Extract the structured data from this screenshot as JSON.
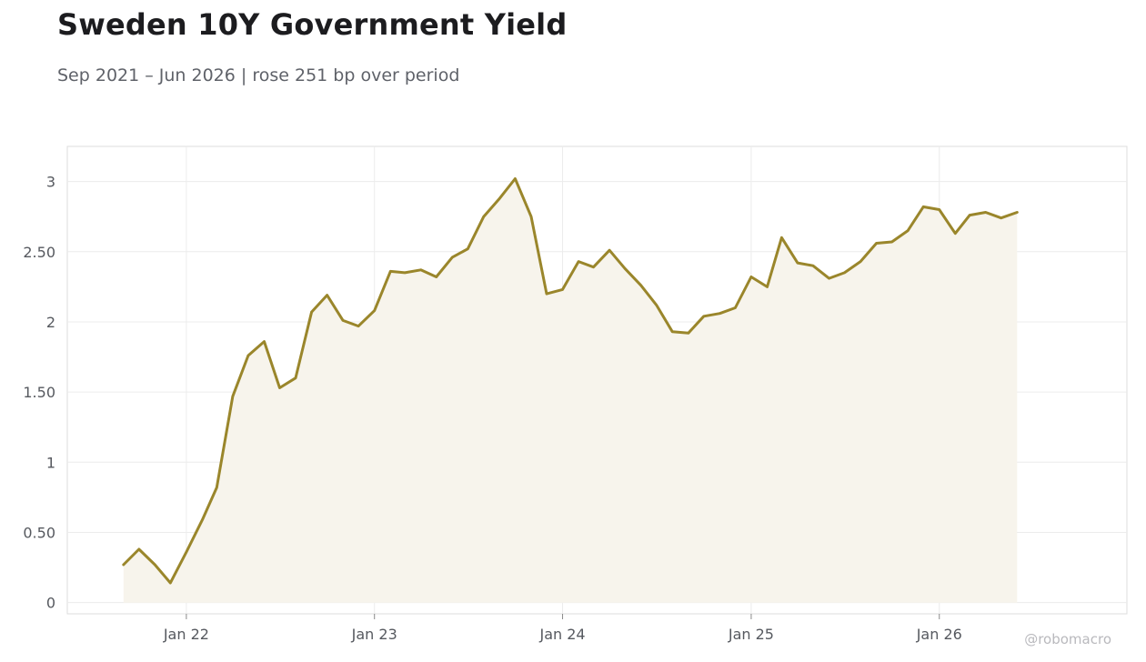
{
  "header": {
    "title": "Sweden 10Y Government Yield",
    "subtitle": "Sep 2021 – Jun 2026 | rose 251 bp over period"
  },
  "watermark": "@robomacro",
  "chart_data": {
    "type": "area",
    "title": "Sweden 10Y Government Yield",
    "subtitle": "Sep 2021 – Jun 2026 | rose 251 bp over period",
    "xlabel": "",
    "ylabel": "",
    "ylim": [
      -0.08,
      3.25
    ],
    "xlim": [
      "2021-05-15",
      "2026-12-31"
    ],
    "grid": true,
    "legend": "none",
    "line_color": "#9a862b",
    "fill_color": "#f7f4ec",
    "x_ticks": [
      {
        "date": "2022-01-01",
        "label": "Jan 22"
      },
      {
        "date": "2023-01-01",
        "label": "Jan 23"
      },
      {
        "date": "2024-01-01",
        "label": "Jan 24"
      },
      {
        "date": "2025-01-01",
        "label": "Jan 25"
      },
      {
        "date": "2026-01-01",
        "label": "Jan 26"
      }
    ],
    "y_ticks": [
      {
        "value": 0,
        "label": "0"
      },
      {
        "value": 0.5,
        "label": "0.50"
      },
      {
        "value": 1,
        "label": "1"
      },
      {
        "value": 1.5,
        "label": "1.50"
      },
      {
        "value": 2,
        "label": "2"
      },
      {
        "value": 2.5,
        "label": "2.50"
      },
      {
        "value": 3,
        "label": "3"
      }
    ],
    "series": [
      {
        "x": [
          "2021-09-01",
          "2021-10-01",
          "2021-11-01",
          "2021-12-01",
          "2022-01-01",
          "2022-02-01",
          "2022-03-01",
          "2022-04-01",
          "2022-05-01",
          "2022-06-01",
          "2022-07-01",
          "2022-08-01",
          "2022-09-01",
          "2022-10-01",
          "2022-11-01",
          "2022-12-01",
          "2023-01-01",
          "2023-02-01",
          "2023-03-01",
          "2023-04-01",
          "2023-05-01",
          "2023-06-01",
          "2023-07-01",
          "2023-08-01",
          "2023-09-01",
          "2023-10-01",
          "2023-11-01",
          "2023-12-01",
          "2024-01-01",
          "2024-02-01",
          "2024-03-01",
          "2024-04-01",
          "2024-05-01",
          "2024-06-01",
          "2024-07-01",
          "2024-08-01",
          "2024-09-01",
          "2024-10-01",
          "2024-11-01",
          "2024-12-01",
          "2025-01-01",
          "2025-02-01",
          "2025-03-01",
          "2025-04-01",
          "2025-05-01",
          "2025-06-01",
          "2025-07-01",
          "2025-08-01",
          "2025-09-01",
          "2025-10-01",
          "2025-11-01",
          "2025-12-01",
          "2026-01-01",
          "2026-02-01",
          "2026-03-01",
          "2026-04-01",
          "2026-05-01",
          "2026-06-01"
        ],
        "values": [
          0.27,
          0.38,
          0.27,
          0.14,
          0.36,
          0.59,
          0.82,
          1.47,
          1.76,
          1.86,
          1.53,
          1.6,
          2.07,
          2.19,
          2.01,
          1.97,
          2.08,
          2.36,
          2.35,
          2.37,
          2.32,
          2.46,
          2.52,
          2.75,
          2.88,
          3.02,
          2.75,
          2.2,
          2.23,
          2.43,
          2.39,
          2.51,
          2.38,
          2.26,
          2.12,
          1.93,
          1.92,
          2.04,
          2.06,
          2.1,
          2.32,
          2.25,
          2.6,
          2.42,
          2.4,
          2.31,
          2.35,
          2.43,
          2.56,
          2.57,
          2.65,
          2.82,
          2.8,
          2.63,
          2.76,
          2.78,
          2.74,
          2.78
        ]
      }
    ]
  }
}
